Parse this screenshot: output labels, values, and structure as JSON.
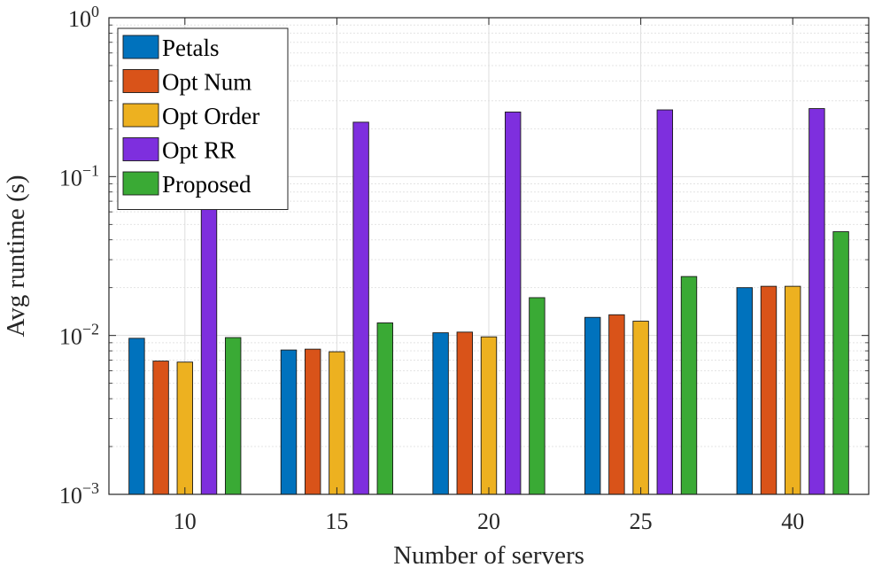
{
  "chart_data": {
    "type": "bar",
    "scale_y": "log",
    "xlabel": "Number of servers",
    "ylabel": "Avg runtime (s)",
    "categories": [
      "10",
      "15",
      "20",
      "25",
      "40"
    ],
    "ylim": [
      0.001,
      1
    ],
    "yticks": [
      {
        "value": 0.001,
        "base": "10",
        "exp": "−3"
      },
      {
        "value": 0.01,
        "base": "10",
        "exp": "−2"
      },
      {
        "value": 0.1,
        "base": "10",
        "exp": "−1"
      },
      {
        "value": 1,
        "base": "10",
        "exp": "0"
      }
    ],
    "grid": true,
    "legend_position": "top-left",
    "series": [
      {
        "name": "Petals",
        "color": "#0072BD",
        "values": [
          0.0096,
          0.0081,
          0.0104,
          0.013,
          0.02
        ]
      },
      {
        "name": "Opt Num",
        "color": "#D95319",
        "values": [
          0.0069,
          0.0082,
          0.0105,
          0.0135,
          0.0204
        ]
      },
      {
        "name": "Opt Order",
        "color": "#EDB120",
        "values": [
          0.0068,
          0.0079,
          0.0098,
          0.0123,
          0.0204
        ]
      },
      {
        "name": "Opt RR",
        "color": "#7E2FDE",
        "values": [
          0.071,
          0.22,
          0.255,
          0.263,
          0.268
        ]
      },
      {
        "name": "Proposed",
        "color": "#3AAA35",
        "values": [
          0.0097,
          0.012,
          0.0173,
          0.0235,
          0.045
        ]
      }
    ]
  }
}
